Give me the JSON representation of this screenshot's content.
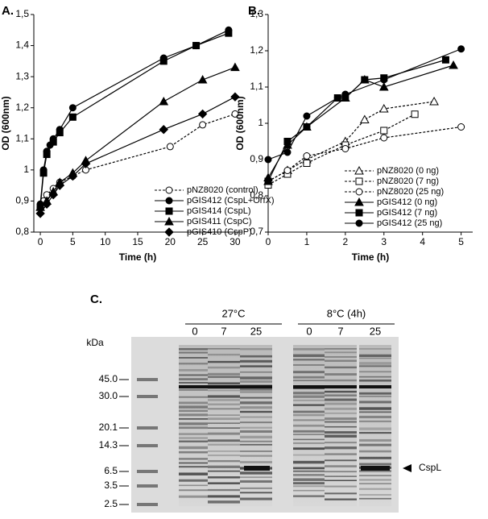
{
  "chart_data": [
    {
      "type": "line",
      "panel_label": "A.",
      "x_label": "Time (h)",
      "y_label": "OD (600nm)",
      "xlim": [
        -1,
        31
      ],
      "xticks": [
        0,
        5,
        10,
        15,
        20,
        25,
        30
      ],
      "ylim": [
        0.8,
        1.5
      ],
      "yticks": [
        {
          "value": 0.8,
          "label": "0,8"
        },
        {
          "value": 0.9,
          "label": "0,9"
        },
        1,
        {
          "value": 1.1,
          "label": "1,1"
        },
        {
          "value": 1.2,
          "label": "1,2"
        },
        {
          "value": 1.3,
          "label": "1,3"
        },
        {
          "value": 1.4,
          "label": "1,4"
        },
        {
          "value": 1.5,
          "label": "1,5"
        }
      ],
      "legend": "lower right",
      "series": [
        {
          "name": "pNZ8020 (control)",
          "color": "#000000",
          "marker": "circle-open",
          "dashed": true,
          "x": [
            0,
            0.5,
            1,
            2,
            3,
            5,
            7,
            20,
            25,
            30
          ],
          "values": [
            0.88,
            0.9,
            0.92,
            0.94,
            0.96,
            0.98,
            1.0,
            1.075,
            1.145,
            1.18
          ]
        },
        {
          "name": "pGIS412 (CspL+OrfX)",
          "color": "#000000",
          "marker": "circle",
          "dashed": false,
          "x": [
            0,
            0.5,
            1,
            1.5,
            2,
            3,
            5,
            19,
            24,
            29
          ],
          "values": [
            0.89,
            1.0,
            1.06,
            1.08,
            1.1,
            1.13,
            1.2,
            1.36,
            1.4,
            1.45
          ]
        },
        {
          "name": "pGIS414 (CspL)",
          "color": "#000000",
          "marker": "square",
          "dashed": false,
          "x": [
            0,
            0.5,
            1,
            2,
            3,
            5,
            19,
            24,
            29
          ],
          "values": [
            0.88,
            0.99,
            1.05,
            1.09,
            1.12,
            1.17,
            1.35,
            1.4,
            1.44
          ]
        },
        {
          "name": "pGIS411 (CspC)",
          "color": "#000000",
          "marker": "triangle",
          "dashed": false,
          "x": [
            0,
            1,
            2,
            3,
            5,
            7,
            19,
            25,
            30
          ],
          "values": [
            0.88,
            0.9,
            0.93,
            0.96,
            0.99,
            1.03,
            1.22,
            1.29,
            1.33
          ]
        },
        {
          "name": "pGIS410 (CspP)",
          "color": "#000000",
          "marker": "diamond",
          "dashed": false,
          "x": [
            0,
            1,
            2,
            3,
            5,
            7,
            19,
            25,
            30
          ],
          "values": [
            0.86,
            0.89,
            0.92,
            0.95,
            0.98,
            1.02,
            1.13,
            1.18,
            1.235
          ]
        }
      ]
    },
    {
      "type": "line",
      "panel_label": "B.",
      "x_label": "Time (h)",
      "y_label": "OD (600nm)",
      "xlim": [
        0,
        5.3
      ],
      "xticks": [
        0,
        1,
        2,
        3,
        4,
        5
      ],
      "ylim": [
        0.7,
        1.3
      ],
      "yticks": [
        {
          "value": 0.7,
          "label": "0,7"
        },
        {
          "value": 0.8,
          "label": "0,8"
        },
        {
          "value": 0.9,
          "label": "0,9"
        },
        1,
        {
          "value": 1.1,
          "label": "1,1"
        },
        {
          "value": 1.2,
          "label": "1,2"
        },
        {
          "value": 1.3,
          "label": "1,3"
        }
      ],
      "legend": "lower right",
      "series": [
        {
          "name": "pNZ8020 (0 ng)",
          "color": "#000000",
          "marker": "triangle-open",
          "dashed": true,
          "x": [
            0,
            0.5,
            1,
            2,
            2.5,
            3,
            4.3
          ],
          "values": [
            0.84,
            0.87,
            0.9,
            0.95,
            1.01,
            1.04,
            1.06
          ]
        },
        {
          "name": "pNZ8020 (7 ng)",
          "color": "#000000",
          "marker": "square-open",
          "dashed": true,
          "x": [
            0,
            0.5,
            1,
            2,
            3,
            3.8
          ],
          "values": [
            0.83,
            0.86,
            0.89,
            0.94,
            0.98,
            1.025
          ]
        },
        {
          "name": "pNZ8020 (25 ng)",
          "color": "#000000",
          "marker": "circle-open",
          "dashed": true,
          "x": [
            0,
            0.5,
            1,
            2,
            3,
            5
          ],
          "values": [
            0.84,
            0.87,
            0.91,
            0.93,
            0.96,
            0.99
          ]
        },
        {
          "name": "pGIS412 (0 ng)",
          "color": "#000000",
          "marker": "triangle",
          "dashed": false,
          "x": [
            0,
            0.5,
            1,
            2,
            2.5,
            3,
            4.8
          ],
          "values": [
            0.85,
            0.94,
            0.99,
            1.07,
            1.12,
            1.1,
            1.16
          ]
        },
        {
          "name": "pGIS412 (7 ng)",
          "color": "#000000",
          "marker": "square",
          "dashed": false,
          "x": [
            0,
            0.5,
            1,
            1.8,
            2,
            2.5,
            3,
            4.6
          ],
          "values": [
            0.84,
            0.95,
            0.99,
            1.07,
            1.07,
            1.12,
            1.125,
            1.175
          ]
        },
        {
          "name": "pGIS412 (25 ng)",
          "color": "#000000",
          "marker": "circle",
          "dashed": false,
          "x": [
            0,
            0.5,
            1,
            1.8,
            2,
            3,
            5
          ],
          "values": [
            0.9,
            0.92,
            1.02,
            1.07,
            1.08,
            1.12,
            1.205
          ]
        }
      ]
    }
  ],
  "gel": {
    "panel_label": "C.",
    "groups": [
      "27°C",
      "8°C (4h)"
    ],
    "lanes": [
      "0",
      "7",
      "25",
      "0",
      "7",
      "25"
    ],
    "unit": "kDa",
    "markers": [
      "45.0",
      "30.0",
      "20.1",
      "14.3",
      "6.5",
      "3.5",
      "2.5"
    ],
    "arrow_label": "CspL"
  }
}
